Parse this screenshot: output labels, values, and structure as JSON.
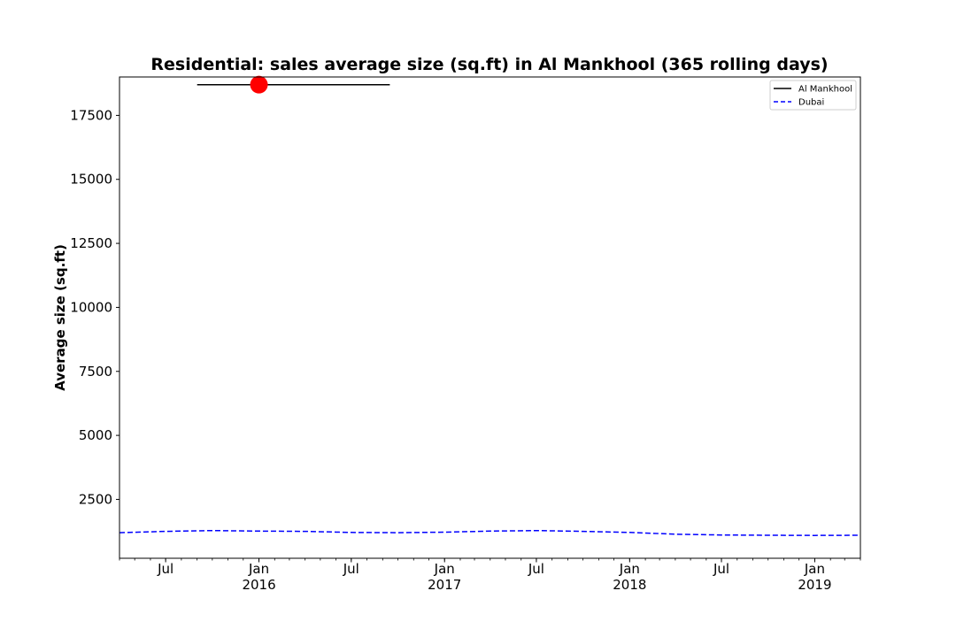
{
  "chart_data": {
    "type": "line",
    "title": "Residential: sales average size (sq.ft) in Al Mankhool (365 rolling days)",
    "xlabel": "",
    "ylabel": "Average size (sq.ft)",
    "xlim": [
      "2015-04-01",
      "2019-04-01"
    ],
    "ylim": [
      200,
      19000
    ],
    "y_ticks": [
      2500,
      5000,
      7500,
      10000,
      12500,
      15000,
      17500
    ],
    "y_tick_labels": [
      "2500",
      "5000",
      "7500",
      "10000",
      "12500",
      "15000",
      "17500"
    ],
    "x_ticks": [
      {
        "date": "2015-07-01",
        "label": "Jul",
        "sublabel": ""
      },
      {
        "date": "2016-01-01",
        "label": "Jan",
        "sublabel": "2016"
      },
      {
        "date": "2016-07-01",
        "label": "Jul",
        "sublabel": ""
      },
      {
        "date": "2017-01-01",
        "label": "Jan",
        "sublabel": "2017"
      },
      {
        "date": "2017-07-01",
        "label": "Jul",
        "sublabel": ""
      },
      {
        "date": "2018-01-01",
        "label": "Jan",
        "sublabel": "2018"
      },
      {
        "date": "2018-07-01",
        "label": "Jul",
        "sublabel": ""
      },
      {
        "date": "2019-01-01",
        "label": "Jan",
        "sublabel": "2019"
      }
    ],
    "legend_position": "top-right",
    "grid": false,
    "series": [
      {
        "name": "Al Mankhool",
        "color": "#000000",
        "style": "solid",
        "points": [
          {
            "x": "2015-09-01",
            "y": 18700
          },
          {
            "x": "2016-09-15",
            "y": 18700
          }
        ]
      },
      {
        "name": "Dubai",
        "color": "#0000ff",
        "style": "dashed",
        "points": [
          {
            "x": "2015-04-01",
            "y": 1200
          },
          {
            "x": "2015-07-01",
            "y": 1250
          },
          {
            "x": "2015-10-01",
            "y": 1280
          },
          {
            "x": "2016-01-01",
            "y": 1260
          },
          {
            "x": "2016-04-01",
            "y": 1250
          },
          {
            "x": "2016-07-01",
            "y": 1210
          },
          {
            "x": "2016-10-01",
            "y": 1200
          },
          {
            "x": "2017-01-01",
            "y": 1220
          },
          {
            "x": "2017-04-01",
            "y": 1260
          },
          {
            "x": "2017-07-01",
            "y": 1280
          },
          {
            "x": "2017-10-01",
            "y": 1250
          },
          {
            "x": "2018-01-01",
            "y": 1210
          },
          {
            "x": "2018-04-01",
            "y": 1140
          },
          {
            "x": "2018-07-01",
            "y": 1110
          },
          {
            "x": "2018-10-01",
            "y": 1100
          },
          {
            "x": "2019-01-01",
            "y": 1090
          },
          {
            "x": "2019-04-01",
            "y": 1100
          }
        ]
      }
    ],
    "markers": [
      {
        "x": "2016-01-01",
        "y": 18700,
        "color": "#ff0000"
      }
    ]
  }
}
